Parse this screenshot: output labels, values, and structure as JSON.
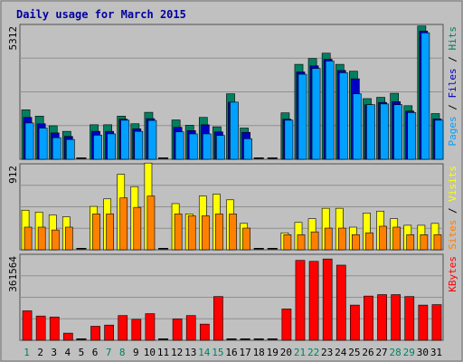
{
  "colors": {
    "background": "#c0c0c0",
    "plot_bg": "#c0c0c0",
    "pages": "#00a0ff",
    "files": "#0000c0",
    "hits": "#008060",
    "visits": "#ffff00",
    "sites": "#ff8000",
    "kbytes": "#ff0000",
    "title": "#0000a0",
    "weekend_day_label": "#008060"
  },
  "chart_data": {
    "type": "bar",
    "title": "Daily usage for March 2015",
    "days": [
      "1",
      "2",
      "3",
      "4",
      "5",
      "6",
      "7",
      "8",
      "9",
      "10",
      "11",
      "12",
      "13",
      "14",
      "15",
      "16",
      "17",
      "18",
      "19",
      "20",
      "21",
      "22",
      "23",
      "24",
      "25",
      "26",
      "27",
      "28",
      "29",
      "30",
      "31"
    ],
    "weekend_days": [
      "1",
      "7",
      "8",
      "14",
      "15",
      "21",
      "22",
      "28",
      "29"
    ],
    "panels": [
      {
        "name": "hits-files-pages",
        "max_label": "5312",
        "ylim": [
          0,
          5312
        ],
        "legend": [
          "Pages",
          "Files",
          "Hits"
        ],
        "series": [
          {
            "name": "Hits",
            "color": "#008060",
            "values": [
              1950,
              1700,
              1320,
              1100,
              0,
              1360,
              1360,
              1700,
              1400,
              1850,
              0,
              1550,
              1340,
              1650,
              1280,
              2580,
              1230,
              0,
              0,
              1830,
              3740,
              3970,
              4180,
              3740,
              3470,
              2390,
              2440,
              2600,
              2110,
              5250,
              1800
            ]
          },
          {
            "name": "Files",
            "color": "#0000c0",
            "values": [
              1650,
              1400,
              1040,
              900,
              0,
              1100,
              1100,
              1580,
              1200,
              1600,
              0,
              1260,
              1130,
              1360,
              1080,
              2250,
              1060,
              0,
              0,
              1580,
              3440,
              3680,
              3940,
              3500,
              3170,
              2150,
              2240,
              2270,
              1900,
              5050,
              1590
            ]
          },
          {
            "name": "Pages",
            "color": "#00a0ff",
            "values": [
              1430,
              1230,
              850,
              780,
              0,
              950,
              1000,
              1540,
              1100,
              1530,
              0,
              1080,
              1000,
              1000,
              940,
              2250,
              810,
              0,
              0,
              1540,
              3350,
              3580,
              3870,
              3410,
              2580,
              2150,
              2180,
              2150,
              1840,
              4980,
              1540
            ]
          }
        ]
      },
      {
        "name": "visits-sites",
        "max_label": "912",
        "ylim": [
          0,
          912
        ],
        "legend": [
          "Sites",
          "Visits"
        ],
        "series": [
          {
            "name": "Visits",
            "color": "#ffff00",
            "values": [
              420,
              400,
              370,
              350,
              0,
              460,
              540,
              800,
              670,
              920,
              0,
              490,
              380,
              570,
              590,
              530,
              280,
              0,
              0,
              180,
              290,
              330,
              440,
              440,
              240,
              390,
              410,
              330,
              260,
              260,
              280
            ]
          },
          {
            "name": "Sites",
            "color": "#ff8000",
            "values": [
              240,
              240,
              210,
              240,
              0,
              380,
              380,
              550,
              450,
              570,
              0,
              380,
              360,
              360,
              380,
              380,
              230,
              0,
              0,
              160,
              160,
              190,
              230,
              230,
              160,
              180,
              250,
              240,
              160,
              160,
              160
            ]
          }
        ]
      },
      {
        "name": "kbytes",
        "max_label": "361564",
        "ylim": [
          0,
          361564
        ],
        "legend": [
          "KBytes"
        ],
        "series": [
          {
            "name": "KBytes",
            "color": "#ff0000",
            "values": [
              124000,
              102000,
              98000,
              30000,
              0,
              59000,
              64000,
              104000,
              88000,
              112000,
              0,
              90000,
              104000,
              68000,
              184000,
              0,
              0,
              0,
              0,
              132000,
              336000,
              332000,
              342000,
              316000,
              148000,
              186000,
              192000,
              192000,
              184000,
              148000,
              150000
            ]
          }
        ]
      }
    ]
  }
}
